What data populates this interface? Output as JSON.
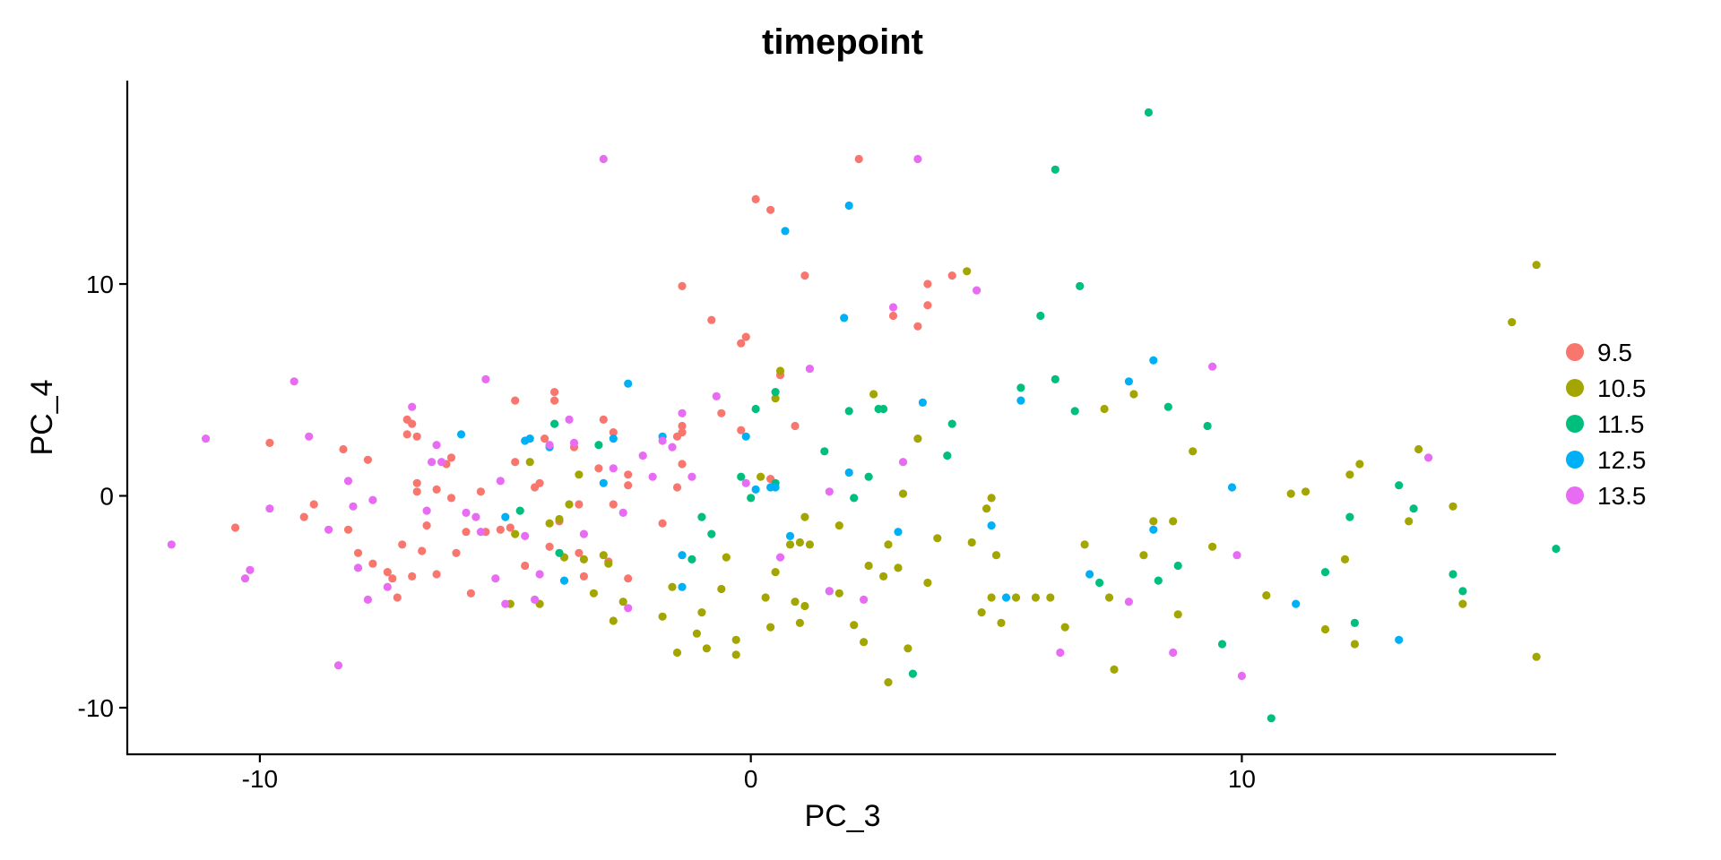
{
  "chart_data": {
    "type": "scatter",
    "title": "timepoint",
    "xlabel": "PC_3",
    "ylabel": "PC_4",
    "xlim": [
      -12.7,
      16.4
    ],
    "ylim": [
      -12.2,
      19.6
    ],
    "xticks": [
      -10,
      0,
      10
    ],
    "yticks": [
      -10,
      0,
      10
    ],
    "grid": false,
    "legend_position": "right",
    "series": [
      {
        "name": "9.5",
        "color": "#F8766D",
        "points": [
          [
            -10.5,
            -1.5
          ],
          [
            -9.8,
            2.5
          ],
          [
            -9.1,
            -1.0
          ],
          [
            -8.9,
            -0.4
          ],
          [
            -8.3,
            2.2
          ],
          [
            -8.2,
            -1.6
          ],
          [
            -8.0,
            -2.7
          ],
          [
            -7.8,
            1.7
          ],
          [
            -7.7,
            -3.2
          ],
          [
            -7.4,
            -3.6
          ],
          [
            -7.3,
            -3.9
          ],
          [
            -7.2,
            -4.8
          ],
          [
            -7.1,
            -2.3
          ],
          [
            -7.0,
            3.6
          ],
          [
            -7.0,
            2.9
          ],
          [
            -6.9,
            -3.8
          ],
          [
            -6.9,
            3.4
          ],
          [
            -6.8,
            2.8
          ],
          [
            -6.8,
            0.6
          ],
          [
            -6.8,
            0.2
          ],
          [
            -6.7,
            -2.6
          ],
          [
            -6.6,
            -1.4
          ],
          [
            -6.4,
            -3.7
          ],
          [
            -6.4,
            0.3
          ],
          [
            -6.2,
            1.5
          ],
          [
            -6.1,
            1.8
          ],
          [
            -6.1,
            -0.1
          ],
          [
            -6.0,
            -2.7
          ],
          [
            -5.8,
            -1.7
          ],
          [
            -5.7,
            -4.6
          ],
          [
            -5.5,
            0.2
          ],
          [
            -5.4,
            -1.7
          ],
          [
            -5.1,
            -1.6
          ],
          [
            -4.9,
            -1.5
          ],
          [
            -4.8,
            4.5
          ],
          [
            -4.8,
            1.6
          ],
          [
            -4.6,
            -3.3
          ],
          [
            -4.4,
            0.4
          ],
          [
            -4.3,
            0.6
          ],
          [
            -4.2,
            2.7
          ],
          [
            -4.1,
            -2.4
          ],
          [
            -4.0,
            4.9
          ],
          [
            -4.0,
            4.5
          ],
          [
            -3.9,
            -1.2
          ],
          [
            -3.6,
            2.3
          ],
          [
            -3.5,
            -2.7
          ],
          [
            -3.5,
            -0.4
          ],
          [
            -3.4,
            -3.8
          ],
          [
            -3.1,
            1.3
          ],
          [
            -3.0,
            3.6
          ],
          [
            -2.9,
            -3.1
          ],
          [
            -2.8,
            3.0
          ],
          [
            -2.8,
            -0.4
          ],
          [
            -2.5,
            -3.9
          ],
          [
            -2.5,
            1.0
          ],
          [
            -2.5,
            0.5
          ],
          [
            -1.8,
            -1.3
          ],
          [
            -1.5,
            0.4
          ],
          [
            -1.5,
            2.8
          ],
          [
            -1.4,
            3.3
          ],
          [
            -1.4,
            3.0
          ],
          [
            -1.4,
            1.5
          ],
          [
            -1.4,
            9.9
          ],
          [
            -0.8,
            8.3
          ],
          [
            -0.6,
            3.9
          ],
          [
            -0.2,
            3.1
          ],
          [
            -0.2,
            7.2
          ],
          [
            -0.1,
            7.5
          ],
          [
            0.1,
            14.0
          ],
          [
            0.4,
            0.8
          ],
          [
            0.4,
            13.5
          ],
          [
            0.6,
            5.7
          ],
          [
            0.9,
            3.3
          ],
          [
            1.1,
            10.4
          ],
          [
            2.2,
            15.9
          ],
          [
            2.9,
            8.5
          ],
          [
            3.4,
            8.0
          ],
          [
            3.6,
            9.0
          ],
          [
            3.6,
            10.0
          ],
          [
            4.1,
            10.4
          ]
        ]
      },
      {
        "name": "10.5",
        "color": "#A3A500",
        "points": [
          [
            -4.9,
            -5.1
          ],
          [
            -4.8,
            -1.8
          ],
          [
            -4.5,
            1.6
          ],
          [
            -4.3,
            -5.1
          ],
          [
            -4.1,
            -1.3
          ],
          [
            -3.9,
            -1.1
          ],
          [
            -3.8,
            -2.9
          ],
          [
            -3.7,
            -0.4
          ],
          [
            -3.5,
            1.0
          ],
          [
            -3.4,
            -3.0
          ],
          [
            -3.2,
            -4.6
          ],
          [
            -3.0,
            -2.8
          ],
          [
            -2.9,
            -3.2
          ],
          [
            -2.8,
            -5.9
          ],
          [
            -2.6,
            -5.0
          ],
          [
            -1.8,
            -5.7
          ],
          [
            -1.6,
            -4.3
          ],
          [
            -1.5,
            -7.4
          ],
          [
            -1.1,
            -6.5
          ],
          [
            -1.0,
            -5.5
          ],
          [
            -0.9,
            -7.2
          ],
          [
            -0.6,
            -4.4
          ],
          [
            -0.5,
            -2.9
          ],
          [
            -0.3,
            -6.8
          ],
          [
            -0.3,
            -7.5
          ],
          [
            0.2,
            0.9
          ],
          [
            0.3,
            -4.8
          ],
          [
            0.4,
            -6.2
          ],
          [
            0.5,
            4.6
          ],
          [
            0.5,
            -3.6
          ],
          [
            0.6,
            5.9
          ],
          [
            0.8,
            -2.3
          ],
          [
            0.9,
            -5.0
          ],
          [
            1.0,
            -2.2
          ],
          [
            1.0,
            -6.0
          ],
          [
            1.1,
            -5.2
          ],
          [
            1.1,
            -1.0
          ],
          [
            1.2,
            -2.3
          ],
          [
            1.8,
            -1.4
          ],
          [
            1.8,
            -4.6
          ],
          [
            2.1,
            -6.1
          ],
          [
            2.3,
            -6.9
          ],
          [
            2.4,
            -3.3
          ],
          [
            2.5,
            4.8
          ],
          [
            2.7,
            -3.8
          ],
          [
            2.8,
            -2.3
          ],
          [
            2.8,
            -8.8
          ],
          [
            3.0,
            -3.4
          ],
          [
            3.1,
            0.1
          ],
          [
            3.2,
            -7.2
          ],
          [
            3.4,
            2.7
          ],
          [
            3.6,
            -4.1
          ],
          [
            3.8,
            -2.0
          ],
          [
            4.4,
            10.6
          ],
          [
            4.5,
            -2.2
          ],
          [
            4.7,
            -5.5
          ],
          [
            4.8,
            -0.6
          ],
          [
            4.9,
            -0.1
          ],
          [
            4.9,
            -4.8
          ],
          [
            5.0,
            -2.8
          ],
          [
            5.1,
            -6.0
          ],
          [
            5.4,
            -4.8
          ],
          [
            5.8,
            -4.8
          ],
          [
            6.1,
            -4.8
          ],
          [
            6.4,
            -6.2
          ],
          [
            6.8,
            -2.3
          ],
          [
            7.2,
            4.1
          ],
          [
            7.3,
            -4.8
          ],
          [
            7.4,
            -8.2
          ],
          [
            7.8,
            4.8
          ],
          [
            8.0,
            -2.8
          ],
          [
            8.2,
            -1.2
          ],
          [
            8.6,
            -1.2
          ],
          [
            8.7,
            -5.6
          ],
          [
            9.0,
            2.1
          ],
          [
            9.4,
            -2.4
          ],
          [
            10.5,
            -4.7
          ],
          [
            11.0,
            0.1
          ],
          [
            11.3,
            0.2
          ],
          [
            11.7,
            -6.3
          ],
          [
            12.1,
            -3.0
          ],
          [
            12.2,
            1.0
          ],
          [
            12.3,
            -7.0
          ],
          [
            12.4,
            1.5
          ],
          [
            13.4,
            -1.2
          ],
          [
            13.6,
            2.2
          ],
          [
            14.3,
            -0.5
          ],
          [
            14.5,
            -5.1
          ],
          [
            15.5,
            8.2
          ],
          [
            16.0,
            10.9
          ],
          [
            16.0,
            -7.6
          ]
        ]
      },
      {
        "name": "11.5",
        "color": "#00BF7D",
        "points": [
          [
            -4.7,
            -0.7
          ],
          [
            -4.0,
            3.4
          ],
          [
            -3.9,
            -2.7
          ],
          [
            -3.1,
            2.4
          ],
          [
            -1.2,
            -3.0
          ],
          [
            -1.0,
            -1.0
          ],
          [
            -0.8,
            -1.8
          ],
          [
            -0.2,
            0.9
          ],
          [
            0.0,
            -0.1
          ],
          [
            0.1,
            4.1
          ],
          [
            0.5,
            0.6
          ],
          [
            0.5,
            4.9
          ],
          [
            1.5,
            2.1
          ],
          [
            2.0,
            4.0
          ],
          [
            2.1,
            -0.1
          ],
          [
            2.4,
            0.9
          ],
          [
            2.6,
            4.1
          ],
          [
            2.7,
            4.1
          ],
          [
            3.3,
            -8.4
          ],
          [
            4.0,
            1.9
          ],
          [
            4.1,
            3.4
          ],
          [
            5.5,
            5.1
          ],
          [
            5.9,
            8.5
          ],
          [
            6.2,
            15.4
          ],
          [
            6.2,
            5.5
          ],
          [
            6.6,
            4.0
          ],
          [
            6.7,
            9.9
          ],
          [
            7.1,
            -4.1
          ],
          [
            8.1,
            18.1
          ],
          [
            8.3,
            -4.0
          ],
          [
            8.5,
            4.2
          ],
          [
            8.7,
            -3.3
          ],
          [
            9.3,
            3.3
          ],
          [
            9.6,
            -7.0
          ],
          [
            10.6,
            -10.5
          ],
          [
            11.7,
            -3.6
          ],
          [
            12.2,
            -1.0
          ],
          [
            12.3,
            -6.0
          ],
          [
            13.2,
            0.5
          ],
          [
            13.5,
            -0.6
          ],
          [
            14.3,
            -3.7
          ],
          [
            14.5,
            -4.5
          ],
          [
            16.4,
            -2.5
          ]
        ]
      },
      {
        "name": "12.5",
        "color": "#00B0F6",
        "points": [
          [
            -5.9,
            2.9
          ],
          [
            -5.0,
            -1.0
          ],
          [
            -4.6,
            2.6
          ],
          [
            -4.5,
            2.7
          ],
          [
            -4.1,
            2.3
          ],
          [
            -3.8,
            -4.0
          ],
          [
            -3.0,
            0.6
          ],
          [
            -2.8,
            2.7
          ],
          [
            -2.5,
            5.3
          ],
          [
            -1.8,
            2.8
          ],
          [
            -1.4,
            -2.8
          ],
          [
            -1.4,
            -4.3
          ],
          [
            -0.1,
            2.8
          ],
          [
            0.1,
            0.3
          ],
          [
            0.4,
            0.4
          ],
          [
            0.5,
            0.4
          ],
          [
            0.7,
            12.5
          ],
          [
            0.8,
            -1.9
          ],
          [
            1.6,
            -4.5
          ],
          [
            1.9,
            8.4
          ],
          [
            2.0,
            13.7
          ],
          [
            2.0,
            1.1
          ],
          [
            3.0,
            -1.7
          ],
          [
            3.5,
            4.4
          ],
          [
            4.9,
            -1.4
          ],
          [
            5.2,
            -4.8
          ],
          [
            5.5,
            4.5
          ],
          [
            6.9,
            -3.7
          ],
          [
            7.7,
            5.4
          ],
          [
            8.2,
            -1.6
          ],
          [
            8.2,
            6.4
          ],
          [
            9.8,
            0.4
          ],
          [
            11.1,
            -5.1
          ],
          [
            13.2,
            -6.8
          ]
        ]
      },
      {
        "name": "13.5",
        "color": "#E76BF3",
        "points": [
          [
            -11.8,
            -2.3
          ],
          [
            -11.1,
            2.7
          ],
          [
            -10.3,
            -3.9
          ],
          [
            -10.2,
            -3.5
          ],
          [
            -9.8,
            -0.6
          ],
          [
            -9.3,
            5.4
          ],
          [
            -9.0,
            2.8
          ],
          [
            -8.6,
            -1.6
          ],
          [
            -8.4,
            -8.0
          ],
          [
            -8.2,
            0.7
          ],
          [
            -8.1,
            -0.5
          ],
          [
            -8.0,
            -3.4
          ],
          [
            -7.8,
            -4.9
          ],
          [
            -7.7,
            -0.2
          ],
          [
            -7.4,
            -4.3
          ],
          [
            -6.9,
            4.2
          ],
          [
            -6.6,
            -0.7
          ],
          [
            -6.5,
            1.6
          ],
          [
            -6.4,
            2.4
          ],
          [
            -6.3,
            1.6
          ],
          [
            -5.8,
            -0.8
          ],
          [
            -5.6,
            -1.0
          ],
          [
            -5.5,
            -1.7
          ],
          [
            -5.4,
            5.5
          ],
          [
            -5.2,
            -3.9
          ],
          [
            -5.1,
            0.7
          ],
          [
            -5.0,
            -5.1
          ],
          [
            -4.6,
            -1.9
          ],
          [
            -4.4,
            -4.9
          ],
          [
            -4.3,
            -3.7
          ],
          [
            -4.1,
            2.4
          ],
          [
            -3.7,
            3.6
          ],
          [
            -3.6,
            2.5
          ],
          [
            -3.4,
            -1.8
          ],
          [
            -3.0,
            15.9
          ],
          [
            -2.8,
            1.3
          ],
          [
            -2.6,
            -0.8
          ],
          [
            -2.5,
            -5.3
          ],
          [
            -2.2,
            1.9
          ],
          [
            -2.0,
            0.9
          ],
          [
            -1.8,
            2.6
          ],
          [
            -1.6,
            2.3
          ],
          [
            -1.4,
            3.9
          ],
          [
            -1.2,
            0.9
          ],
          [
            -0.7,
            4.7
          ],
          [
            -0.1,
            0.6
          ],
          [
            0.6,
            -2.9
          ],
          [
            1.2,
            6.0
          ],
          [
            1.6,
            -4.5
          ],
          [
            1.6,
            0.2
          ],
          [
            2.3,
            -4.9
          ],
          [
            2.9,
            8.9
          ],
          [
            3.1,
            1.6
          ],
          [
            3.4,
            15.9
          ],
          [
            4.6,
            9.7
          ],
          [
            6.3,
            -7.4
          ],
          [
            7.7,
            -5.0
          ],
          [
            8.6,
            -7.4
          ],
          [
            9.4,
            6.1
          ],
          [
            9.9,
            -2.8
          ],
          [
            10.0,
            -8.5
          ],
          [
            13.8,
            1.8
          ]
        ]
      }
    ]
  }
}
